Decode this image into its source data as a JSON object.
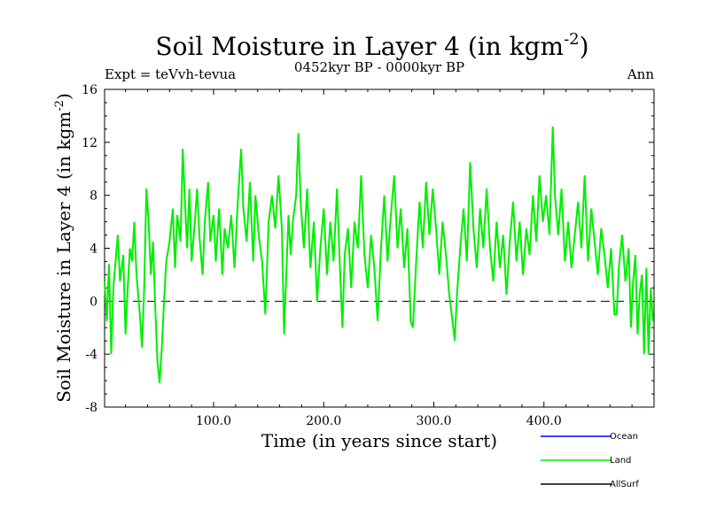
{
  "chart_data": {
    "type": "line",
    "title": "Soil Moisture in Layer 4 (in kgm",
    "title_sup": "-2",
    "title_close": ")",
    "subtitle": "0452kyr BP - 0000kyr BP",
    "expt_label": "Expt = teVvh-tevua",
    "season_label": "Ann",
    "xlabel": "Time (in years since start)",
    "ylabel": "Soil Moisture in Layer 4 (in kgm",
    "ylabel_sup": "-2",
    "ylabel_close": ")",
    "xlim": [
      1,
      500
    ],
    "ylim": [
      -8,
      16
    ],
    "x_ticks": [
      100,
      200,
      300,
      400
    ],
    "x_tick_labels": [
      "100.0",
      "200.0",
      "300.0",
      "400.0"
    ],
    "y_ticks": [
      -8,
      -4,
      0,
      4,
      8,
      12,
      16
    ],
    "y_tick_labels": [
      "-8",
      "-4",
      "0",
      "4",
      "8",
      "12",
      "16"
    ],
    "zero_line": true,
    "legend": [
      {
        "name": "Ocean",
        "color": "#0000ff"
      },
      {
        "name": "Land",
        "color": "#00ee00"
      },
      {
        "name": "AllSurf",
        "color": "#000000"
      }
    ],
    "series": [
      {
        "name": "Land",
        "color": "#00ee00",
        "points": [
          [
            1,
            1.5
          ],
          [
            3,
            -1.5
          ],
          [
            5,
            2.8
          ],
          [
            7,
            -4.0
          ],
          [
            9,
            1.0
          ],
          [
            11,
            3.0
          ],
          [
            13,
            5.0
          ],
          [
            15,
            1.5
          ],
          [
            18,
            3.5
          ],
          [
            20,
            -2.5
          ],
          [
            22,
            1.0
          ],
          [
            24,
            4.0
          ],
          [
            26,
            3.0
          ],
          [
            28,
            6.0
          ],
          [
            30,
            2.0
          ],
          [
            33,
            -1.0
          ],
          [
            35,
            -3.5
          ],
          [
            37,
            1.0
          ],
          [
            39,
            8.5
          ],
          [
            41,
            6.0
          ],
          [
            43,
            2.0
          ],
          [
            45,
            4.5
          ],
          [
            47,
            -0.5
          ],
          [
            49,
            -4.5
          ],
          [
            51,
            -6.2
          ],
          [
            53,
            -3.5
          ],
          [
            55,
            0.0
          ],
          [
            57,
            3.0
          ],
          [
            60,
            4.5
          ],
          [
            63,
            7.0
          ],
          [
            65,
            2.5
          ],
          [
            67,
            6.5
          ],
          [
            70,
            4.5
          ],
          [
            72,
            11.5
          ],
          [
            74,
            7.5
          ],
          [
            76,
            4.0
          ],
          [
            78,
            8.5
          ],
          [
            80,
            3.0
          ],
          [
            83,
            6.0
          ],
          [
            85,
            8.5
          ],
          [
            87,
            5.0
          ],
          [
            90,
            2.0
          ],
          [
            92,
            6.0
          ],
          [
            95,
            9.0
          ],
          [
            97,
            4.5
          ],
          [
            100,
            6.5
          ],
          [
            102,
            3.0
          ],
          [
            105,
            7.0
          ],
          [
            108,
            2.0
          ],
          [
            110,
            5.5
          ],
          [
            113,
            4.0
          ],
          [
            116,
            6.5
          ],
          [
            119,
            2.5
          ],
          [
            122,
            7.5
          ],
          [
            125,
            11.5
          ],
          [
            127,
            7.0
          ],
          [
            130,
            4.5
          ],
          [
            133,
            9.0
          ],
          [
            136,
            3.0
          ],
          [
            138,
            8.0
          ],
          [
            141,
            5.0
          ],
          [
            144,
            3.0
          ],
          [
            147,
            -1.0
          ],
          [
            150,
            6.0
          ],
          [
            153,
            8.0
          ],
          [
            156,
            5.5
          ],
          [
            159,
            9.5
          ],
          [
            162,
            5.5
          ],
          [
            164,
            -2.5
          ],
          [
            166,
            2.0
          ],
          [
            168,
            6.5
          ],
          [
            170,
            3.5
          ],
          [
            172,
            6.0
          ],
          [
            175,
            8.0
          ],
          [
            177,
            12.7
          ],
          [
            179,
            7.5
          ],
          [
            182,
            4.0
          ],
          [
            185,
            8.5
          ],
          [
            188,
            2.5
          ],
          [
            191,
            6.0
          ],
          [
            194,
            0.0
          ],
          [
            197,
            4.0
          ],
          [
            200,
            7.0
          ],
          [
            203,
            2.0
          ],
          [
            206,
            6.0
          ],
          [
            209,
            3.0
          ],
          [
            212,
            8.5
          ],
          [
            215,
            2.0
          ],
          [
            217,
            -2.0
          ],
          [
            219,
            3.5
          ],
          [
            222,
            5.5
          ],
          [
            225,
            1.0
          ],
          [
            228,
            6.0
          ],
          [
            231,
            4.0
          ],
          [
            234,
            9.5
          ],
          [
            237,
            3.5
          ],
          [
            240,
            1.0
          ],
          [
            243,
            5.0
          ],
          [
            246,
            2.5
          ],
          [
            249,
            -1.5
          ],
          [
            252,
            4.0
          ],
          [
            255,
            8.0
          ],
          [
            258,
            3.0
          ],
          [
            261,
            6.5
          ],
          [
            264,
            9.5
          ],
          [
            267,
            4.0
          ],
          [
            270,
            7.0
          ],
          [
            273,
            2.5
          ],
          [
            276,
            5.5
          ],
          [
            279,
            -1.5
          ],
          [
            281,
            -2.0
          ],
          [
            284,
            3.0
          ],
          [
            287,
            7.5
          ],
          [
            290,
            4.0
          ],
          [
            293,
            9.0
          ],
          [
            296,
            5.0
          ],
          [
            299,
            8.5
          ],
          [
            302,
            5.5
          ],
          [
            305,
            2.0
          ],
          [
            308,
            6.0
          ],
          [
            311,
            3.5
          ],
          [
            314,
            0.5
          ],
          [
            317,
            -1.5
          ],
          [
            319,
            -3.0
          ],
          [
            321,
            0.5
          ],
          [
            324,
            4.0
          ],
          [
            327,
            7.0
          ],
          [
            330,
            3.0
          ],
          [
            333,
            10.5
          ],
          [
            336,
            5.5
          ],
          [
            339,
            2.5
          ],
          [
            342,
            7.0
          ],
          [
            345,
            4.0
          ],
          [
            348,
            8.5
          ],
          [
            351,
            4.0
          ],
          [
            354,
            1.5
          ],
          [
            357,
            6.0
          ],
          [
            360,
            2.5
          ],
          [
            363,
            5.0
          ],
          [
            366,
            0.5
          ],
          [
            369,
            4.5
          ],
          [
            372,
            7.5
          ],
          [
            375,
            3.0
          ],
          [
            378,
            6.0
          ],
          [
            381,
            2.0
          ],
          [
            384,
            5.5
          ],
          [
            387,
            3.5
          ],
          [
            390,
            8.0
          ],
          [
            393,
            4.5
          ],
          [
            396,
            9.5
          ],
          [
            399,
            6.0
          ],
          [
            402,
            8.0
          ],
          [
            405,
            5.0
          ],
          [
            408,
            13.2
          ],
          [
            410,
            8.0
          ],
          [
            413,
            5.0
          ],
          [
            416,
            8.5
          ],
          [
            419,
            3.0
          ],
          [
            422,
            6.0
          ],
          [
            425,
            2.5
          ],
          [
            428,
            5.0
          ],
          [
            431,
            7.5
          ],
          [
            434,
            4.0
          ],
          [
            437,
            9.5
          ],
          [
            440,
            3.0
          ],
          [
            443,
            7.0
          ],
          [
            446,
            4.5
          ],
          [
            449,
            2.0
          ],
          [
            452,
            5.5
          ],
          [
            455,
            3.5
          ],
          [
            458,
            1.0
          ],
          [
            461,
            4.0
          ],
          [
            464,
            -1.0
          ],
          [
            466,
            -1.0
          ],
          [
            468,
            2.5
          ],
          [
            471,
            5.0
          ],
          [
            474,
            1.5
          ],
          [
            477,
            4.0
          ],
          [
            479,
            -2.0
          ],
          [
            481,
            1.5
          ],
          [
            483,
            3.5
          ],
          [
            485,
            -2.5
          ],
          [
            487,
            0.5
          ],
          [
            489,
            2.0
          ],
          [
            491,
            -4.0
          ],
          [
            493,
            2.5
          ],
          [
            495,
            -4.0
          ],
          [
            497,
            1.0
          ],
          [
            499,
            -1.5
          ]
        ]
      }
    ]
  }
}
